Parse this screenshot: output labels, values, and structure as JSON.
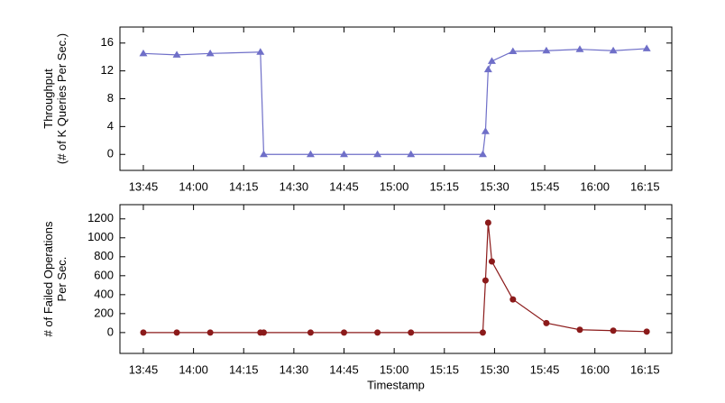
{
  "chart_data": [
    {
      "type": "line",
      "marker": "triangle",
      "ylabel": [
        "Throughput",
        "(# of K Queries Per Sec.)"
      ],
      "x": [
        825,
        835,
        845,
        860,
        861,
        875,
        885,
        895,
        905,
        926.5,
        927.3,
        928.1,
        929.2,
        935.5,
        945.5,
        955.5,
        965.5,
        975.5
      ],
      "series": [
        {
          "color": "#6f6fc8",
          "values": [
            14.5,
            14.3,
            14.5,
            14.7,
            0,
            0,
            0,
            0,
            0,
            0,
            3.3,
            12.2,
            13.4,
            14.8,
            14.9,
            15.1,
            14.9,
            15.2
          ]
        }
      ],
      "xlim": [
        818,
        983
      ],
      "xticks": [
        {
          "value": 825,
          "label": "13:45"
        },
        {
          "value": 840,
          "label": "14:00"
        },
        {
          "value": 855,
          "label": "14:15"
        },
        {
          "value": 870,
          "label": "14:30"
        },
        {
          "value": 885,
          "label": "14:45"
        },
        {
          "value": 900,
          "label": "15:00"
        },
        {
          "value": 915,
          "label": "15:15"
        },
        {
          "value": 930,
          "label": "15:30"
        },
        {
          "value": 945,
          "label": "15:45"
        },
        {
          "value": 960,
          "label": "16:00"
        },
        {
          "value": 975,
          "label": "16:15"
        }
      ],
      "ylim": [
        -2.3,
        18.3
      ],
      "yticks": [
        0,
        4,
        8,
        12,
        16
      ]
    },
    {
      "type": "line",
      "marker": "circle",
      "ylabel": [
        "# of Failed Operations",
        "Per Sec."
      ],
      "xlabel": "Timestamp",
      "x": [
        825,
        835,
        845,
        860,
        861,
        875,
        885,
        895,
        905,
        926.5,
        927.3,
        928.1,
        929.2,
        935.5,
        945.5,
        955.5,
        965.5,
        975.5
      ],
      "series": [
        {
          "color": "#8b1a1a",
          "values": [
            0,
            0,
            0,
            0,
            0,
            0,
            0,
            0,
            0,
            0,
            550,
            1160,
            750,
            350,
            100,
            30,
            20,
            10
          ]
        }
      ],
      "xlim": [
        818,
        983
      ],
      "xticks": [
        {
          "value": 825,
          "label": "13:45"
        },
        {
          "value": 840,
          "label": "14:00"
        },
        {
          "value": 855,
          "label": "14:15"
        },
        {
          "value": 870,
          "label": "14:30"
        },
        {
          "value": 885,
          "label": "14:45"
        },
        {
          "value": 900,
          "label": "15:00"
        },
        {
          "value": 915,
          "label": "15:15"
        },
        {
          "value": 930,
          "label": "15:30"
        },
        {
          "value": 945,
          "label": "15:45"
        },
        {
          "value": 960,
          "label": "16:00"
        },
        {
          "value": 975,
          "label": "16:15"
        }
      ],
      "ylim": [
        -220,
        1350
      ],
      "yticks": [
        0,
        200,
        400,
        600,
        800,
        1000,
        1200
      ]
    }
  ]
}
